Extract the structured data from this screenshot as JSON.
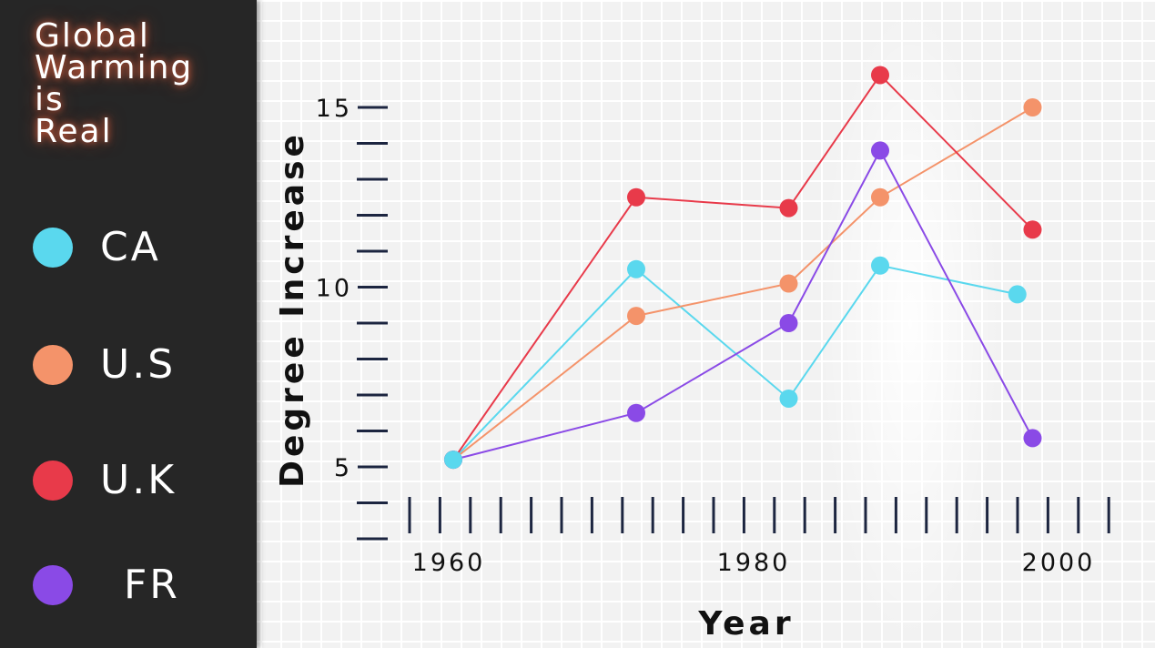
{
  "sidebar": {
    "title": "Global\nWarming\nis\nReal",
    "legend": [
      {
        "label": "CA",
        "color": "#5ad8ee"
      },
      {
        "label": "U.S",
        "color": "#f4936a"
      },
      {
        "label": "U.K",
        "color": "#e83a4a"
      },
      {
        "label": "FR",
        "color": "#8a4ae6"
      }
    ]
  },
  "chart_data": {
    "type": "line",
    "title": "Global\nWarming\nis\nReal",
    "xlabel": "Year",
    "ylabel": "Degree Increase",
    "xlim": [
      1953,
      2004
    ],
    "ylim": [
      3,
      18
    ],
    "x_ticks": [
      1960,
      1980,
      2000
    ],
    "y_ticks": [
      5,
      10,
      15
    ],
    "grid": true,
    "legend_position": "left sidebar",
    "series": [
      {
        "name": "CA",
        "color": "#5ad8ee",
        "points": [
          [
            1960,
            5.2
          ],
          [
            1972,
            10.5
          ],
          [
            1982,
            6.9
          ],
          [
            1988,
            10.6
          ],
          [
            1997,
            9.8
          ]
        ]
      },
      {
        "name": "U.S",
        "color": "#f4936a",
        "points": [
          [
            1960,
            5.2
          ],
          [
            1972,
            9.2
          ],
          [
            1982,
            10.1
          ],
          [
            1988,
            12.5
          ],
          [
            1998,
            15.0
          ]
        ]
      },
      {
        "name": "U.K",
        "color": "#e83a4a",
        "points": [
          [
            1960,
            5.2
          ],
          [
            1972,
            12.5
          ],
          [
            1982,
            12.2
          ],
          [
            1988,
            15.9
          ],
          [
            1998,
            11.6
          ]
        ]
      },
      {
        "name": "FR",
        "color": "#8a4ae6",
        "points": [
          [
            1960,
            5.2
          ],
          [
            1972,
            6.5
          ],
          [
            1982,
            9.0
          ],
          [
            1988,
            13.8
          ],
          [
            1998,
            5.8
          ]
        ]
      }
    ]
  }
}
